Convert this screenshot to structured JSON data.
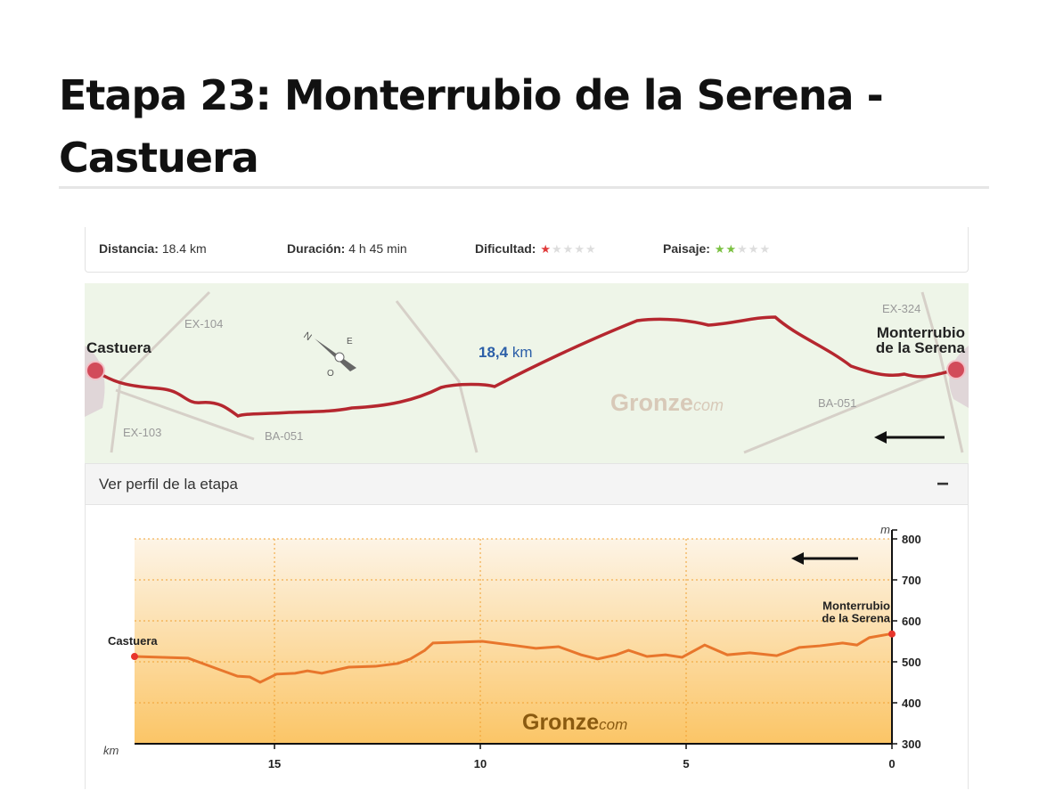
{
  "header": {
    "title": "Etapa 23: Monterrubio de la Serena - Castuera"
  },
  "stats": [
    {
      "label": "Distancia:",
      "value": "18.4 km"
    },
    {
      "label": "Duración:",
      "value": "4 h 45 min"
    },
    {
      "label": "Dificultad:",
      "stars": 1,
      "max": 5,
      "color": "#e03a3a"
    },
    {
      "label": "Paisaje:",
      "stars": 2,
      "max": 5,
      "color": "#7bc142"
    }
  ],
  "map": {
    "start": "Castuera",
    "end": [
      "Monterrubio",
      "de la Serena"
    ],
    "distance": "18,4",
    "distance_unit": "km",
    "roads": [
      "EX-104",
      "EX-103",
      "BA-051",
      "EX-324",
      "BA-051"
    ],
    "compass": [
      "N",
      "E",
      "O"
    ],
    "watermark": "Gronze",
    "watermark_suffix": "com"
  },
  "profile": {
    "toggle": "Ver perfil de la etapa",
    "toggle_icon": "−"
  },
  "chart_data": {
    "type": "line",
    "x": [
      18.4,
      17.1,
      16.45,
      15.9,
      15.6,
      15.35,
      14.95,
      14.5,
      14.2,
      13.85,
      13.2,
      12.55,
      12.0,
      11.7,
      11.35,
      11.15,
      9.95,
      9.1,
      8.65,
      8.1,
      7.55,
      7.15,
      6.7,
      6.4,
      5.95,
      5.5,
      5.1,
      4.55,
      4.0,
      3.45,
      2.8,
      2.25,
      1.75,
      1.2,
      0.85,
      0.55,
      0.1,
      0
    ],
    "values": [
      513,
      509,
      485,
      465,
      463,
      450,
      470,
      472,
      478,
      472,
      487,
      489,
      496,
      507,
      528,
      546,
      550,
      539,
      533,
      537,
      517,
      507,
      517,
      528,
      513,
      517,
      511,
      541,
      517,
      522,
      515,
      535,
      539,
      546,
      541,
      559,
      567,
      568
    ],
    "color": "#e8762c",
    "xlim": [
      18.4,
      0
    ],
    "ylim": [
      300,
      800
    ],
    "xticks": [
      15,
      10,
      5,
      0
    ],
    "yticks": [
      300,
      400,
      500,
      600,
      700,
      800
    ],
    "x_label": "km",
    "y_label": "m",
    "grid": true,
    "start_label": "Castuera",
    "end_label": [
      "Monterrubio",
      "de la Serena"
    ],
    "watermark": "Gronze",
    "watermark_suffix": "com"
  }
}
